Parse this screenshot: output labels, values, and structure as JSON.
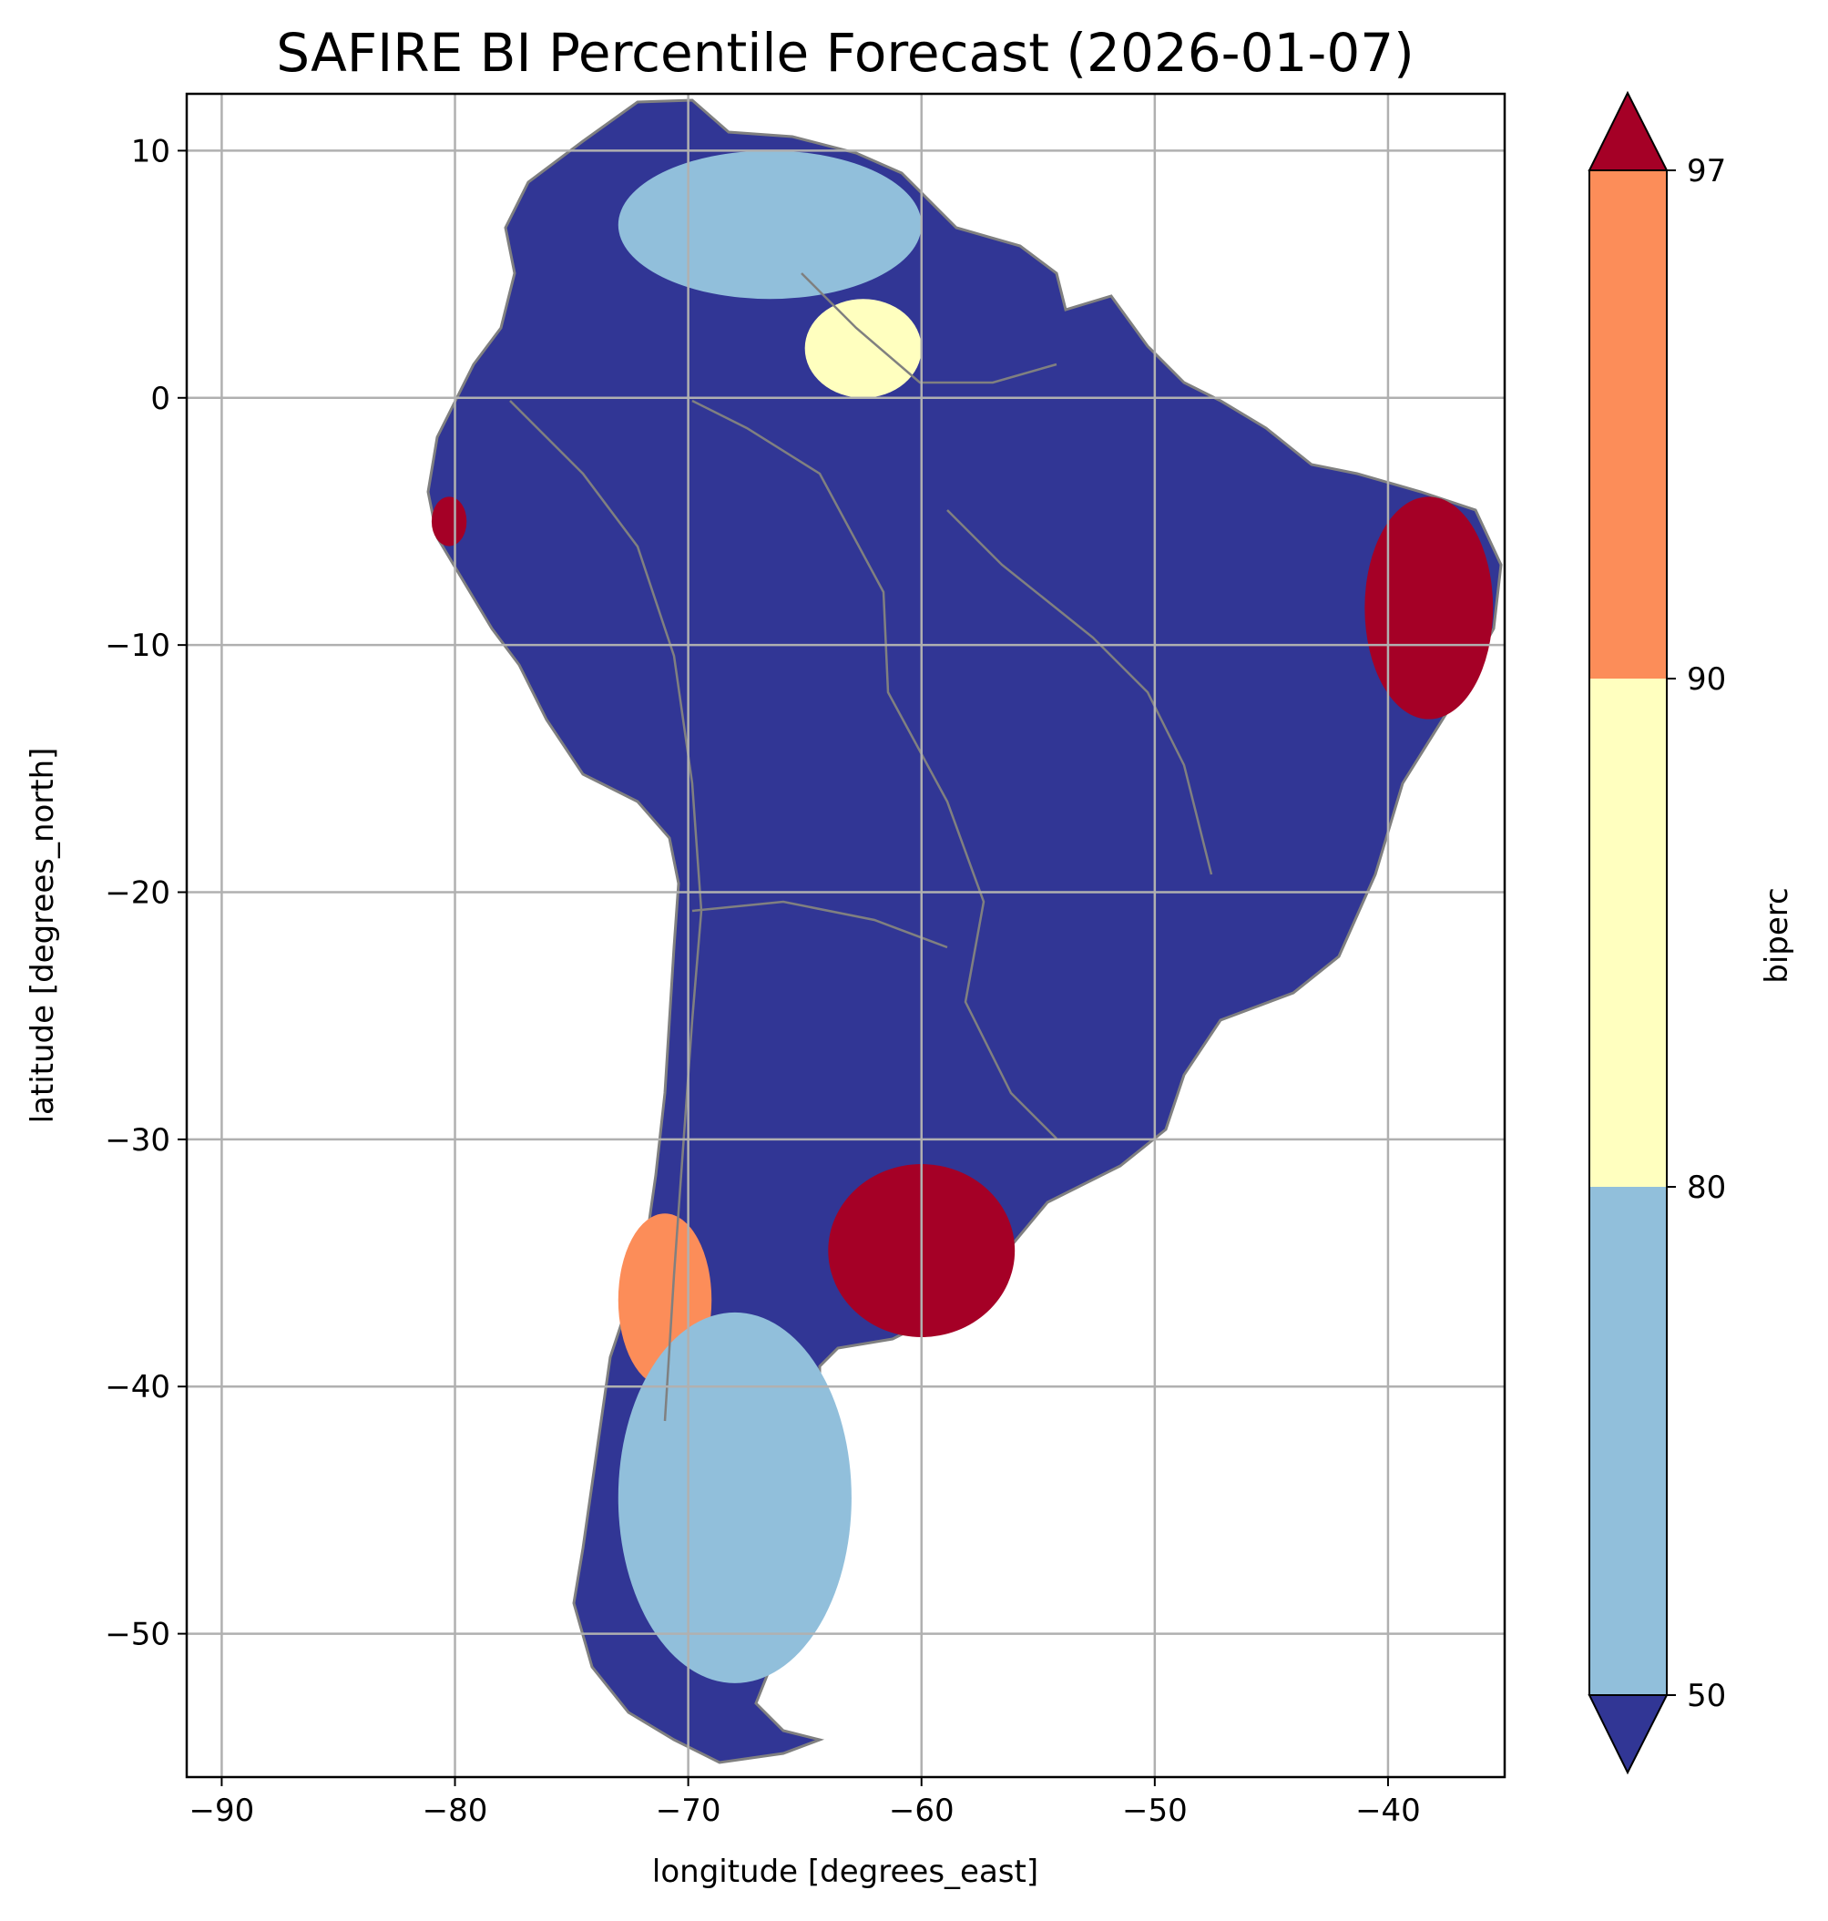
{
  "title": "SAFIRE BI Percentile Forecast (2026-01-07)",
  "map": {
    "region": "South America",
    "xlabel": "longitude [degrees_east]",
    "ylabel": "latitude [degrees_north]",
    "xlim": [
      -91.5,
      -35
    ],
    "ylim": [
      -55.8,
      12.3
    ],
    "xticks": [
      -90,
      -80,
      -70,
      -60,
      -50,
      -40
    ],
    "yticks": [
      10,
      0,
      -10,
      -20,
      -30,
      -40,
      -50
    ],
    "xtick_labels": [
      "−90",
      "−80",
      "−70",
      "−60",
      "−50",
      "−40"
    ],
    "ytick_labels": [
      "10",
      "0",
      "−10",
      "−20",
      "−30",
      "−40",
      "−50"
    ],
    "grid": true,
    "border_color": "#808080",
    "land_background_color": "#313695",
    "zones": [
      {
        "name": "northeast-brazil",
        "level": "gt97",
        "lon": [
          -41,
          -35.5
        ],
        "lat": [
          -13,
          -4
        ]
      },
      {
        "name": "pampas-argentina",
        "level": "gt97",
        "lon": [
          -64,
          -56
        ],
        "lat": [
          -38,
          -31
        ]
      },
      {
        "name": "northwest-peru",
        "level": "gt97",
        "lon": [
          -81,
          -79.5
        ],
        "lat": [
          -6,
          -4
        ]
      },
      {
        "name": "central-chile",
        "level": "90-97",
        "lon": [
          -73,
          -69
        ],
        "lat": [
          -40,
          -33
        ]
      },
      {
        "name": "patagonia",
        "level": "50-80",
        "lon": [
          -73,
          -63
        ],
        "lat": [
          -52,
          -37
        ]
      },
      {
        "name": "venezuela-llanos",
        "level": "50-80",
        "lon": [
          -73,
          -60
        ],
        "lat": [
          4,
          10
        ]
      },
      {
        "name": "roraima",
        "level": "80-90",
        "lon": [
          -65,
          -60
        ],
        "lat": [
          0,
          4
        ]
      }
    ]
  },
  "colorbar": {
    "label": "biperc",
    "levels": [
      50,
      80,
      90,
      97
    ],
    "tick_labels": [
      "50",
      "80",
      "90",
      "97"
    ],
    "colors": {
      "lt50": "#313695",
      "50-80": "#91bfdb",
      "80-90": "#ffffbf",
      "90-97": "#fc8d59",
      "gt97": "#a50026"
    },
    "extend": "both"
  }
}
